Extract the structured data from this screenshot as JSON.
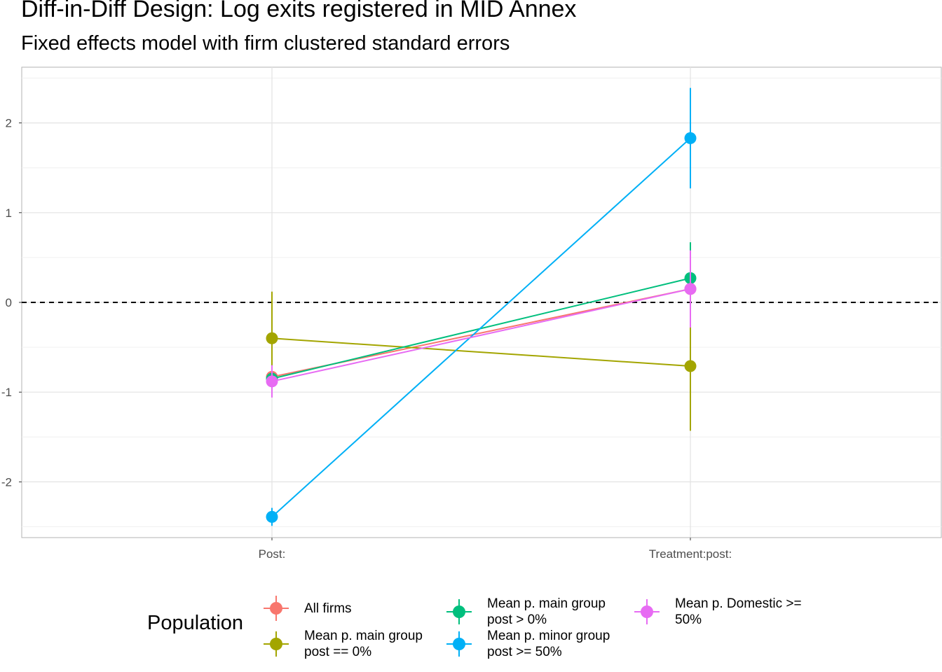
{
  "chart_data": {
    "type": "line",
    "title": "Diff-in-Diff Design: Log exits registered in MID Annex",
    "subtitle": "Fixed effects model with firm clustered standard errors",
    "categories": [
      "Post:",
      "Treatment:post:"
    ],
    "ylim": [
      -2.6,
      2.5
    ],
    "yticks": [
      -2,
      -1,
      0,
      1,
      2
    ],
    "reference_line": 0,
    "grid": true,
    "legend": {
      "title": "Population",
      "position": "bottom"
    },
    "series": [
      {
        "name": "All firms",
        "color": "#F8766D",
        "values": [
          -0.83,
          0.15
        ],
        "lower": [
          -0.98,
          -0.28
        ],
        "upper": [
          -0.68,
          0.58
        ]
      },
      {
        "name": "Mean p. main group\npost == 0%",
        "color": "#A3A500",
        "values": [
          -0.4,
          -0.71
        ],
        "lower": [
          -0.92,
          -1.43
        ],
        "upper": [
          0.12,
          0.01
        ]
      },
      {
        "name": "Mean p. main group\npost > 0%",
        "color": "#00BF7D",
        "values": [
          -0.85,
          0.27
        ],
        "lower": [
          -1.0,
          -0.13
        ],
        "upper": [
          -0.7,
          0.67
        ]
      },
      {
        "name": "Mean p. minor group\npost >= 50%",
        "color": "#00B0F6",
        "values": [
          -2.39,
          1.83
        ],
        "lower": [
          -2.49,
          1.27
        ],
        "upper": [
          -2.29,
          2.39
        ]
      },
      {
        "name": "Mean p. Domestic >=\n50%",
        "color": "#E76BF3",
        "values": [
          -0.88,
          0.15
        ],
        "lower": [
          -1.06,
          -0.28
        ],
        "upper": [
          -0.7,
          0.58
        ]
      }
    ]
  }
}
